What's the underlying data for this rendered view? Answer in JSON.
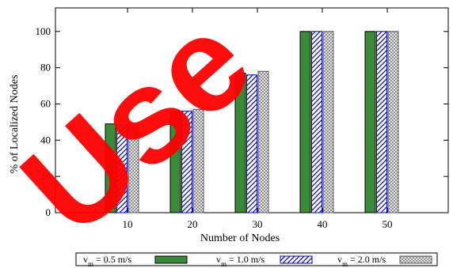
{
  "colors": {
    "series_green": "#3a8a3a",
    "series_blue_hatch": "#0000cc",
    "series_gray_hatch": "#555555",
    "watermark": "#ff0000"
  },
  "watermark": {
    "text": "Use"
  },
  "chart_data": {
    "type": "bar",
    "xlabel": "Number of Nodes",
    "ylabel": "% of Localized Nodes",
    "ylim": [
      0,
      113
    ],
    "y_ticks": [
      0,
      20,
      40,
      60,
      80,
      100
    ],
    "categories": [
      "10",
      "20",
      "30",
      "40",
      "50"
    ],
    "grid": false,
    "legend_position": "bottom",
    "series": [
      {
        "name": "v_m = 0.5 m/s",
        "name_parts": [
          "v",
          "m",
          " = 0.5 m/s"
        ],
        "fill": "solid-green",
        "values": [
          49,
          56,
          77,
          100,
          100
        ]
      },
      {
        "name": "v_m = 1.0 m/s",
        "name_parts": [
          "v",
          "m",
          " = 1.0 m/s"
        ],
        "fill": "blue-diagonal-hatch",
        "values": [
          48.5,
          56,
          76,
          100,
          100
        ]
      },
      {
        "name": "v_m = 2.0 m/s",
        "name_parts": [
          "v",
          "m",
          " = 2.0 m/s"
        ],
        "fill": "gray-crosshatch",
        "values": [
          48.5,
          57,
          78,
          100,
          100
        ]
      }
    ]
  }
}
